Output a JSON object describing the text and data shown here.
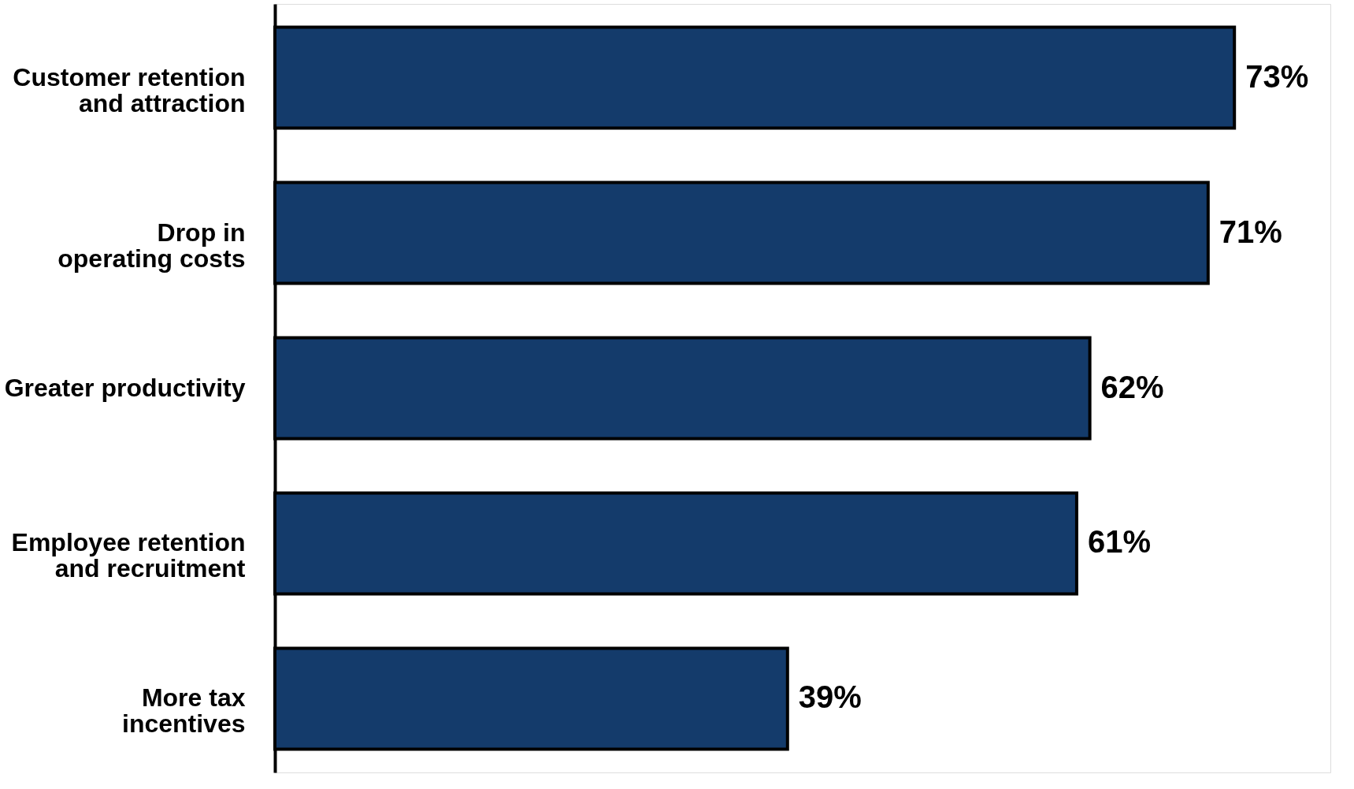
{
  "chart_data": {
    "type": "bar",
    "orientation": "horizontal",
    "categories": [
      "Customer retention\nand attraction",
      "Drop in\noperating costs",
      "Greater productivity",
      "Employee retention\nand recruitment",
      "More tax\nincentives"
    ],
    "values": [
      73,
      71,
      62,
      61,
      39
    ],
    "value_labels": [
      "73%",
      "71%",
      "62%",
      "61%",
      "39%"
    ],
    "color": "#143b6b"
  }
}
